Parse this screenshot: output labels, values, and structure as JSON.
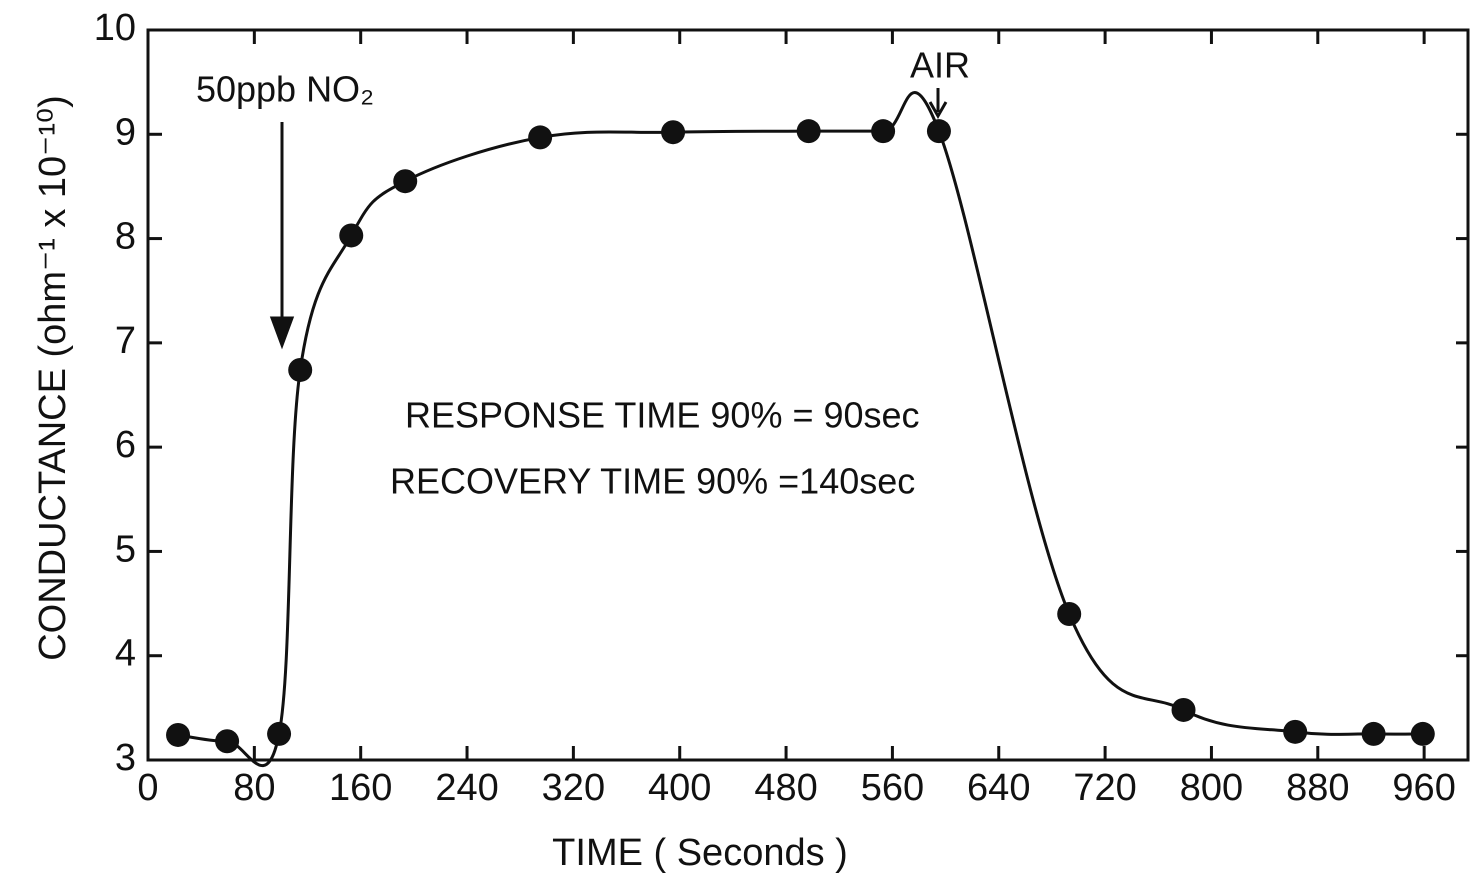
{
  "chart_data": {
    "type": "line",
    "x_label": "TIME    ( Seconds )",
    "y_label": "CONDUCTANCE  (ohm⁻¹ x 10⁻¹⁰)",
    "x": [
      22.6,
      59.5,
      98.6,
      114.5,
      152.9,
      193.5,
      295,
      395,
      497,
      553,
      595,
      693,
      779,
      863,
      922,
      959
    ],
    "series": [
      {
        "color": "#111111",
        "values": [
          3.24,
          3.18,
          3.25,
          6.74,
          8.03,
          8.55,
          8.97,
          9.02,
          9.03,
          9.03,
          9.03,
          4.4,
          3.48,
          3.27,
          3.25,
          3.25
        ]
      }
    ],
    "xlim": [
      0,
      993
    ],
    "ylim": [
      3,
      10
    ],
    "xticks": [
      0,
      80,
      160,
      240,
      320,
      400,
      480,
      560,
      640,
      720,
      800,
      880,
      960
    ],
    "yticks": [
      3,
      4,
      5,
      6,
      7,
      8,
      9,
      10
    ],
    "annotations": [
      "50ppb NO₂",
      "AIR",
      "RESPONSE TIME 90% = 90sec",
      "RECOVERY TIME 90% =140sec"
    ]
  }
}
